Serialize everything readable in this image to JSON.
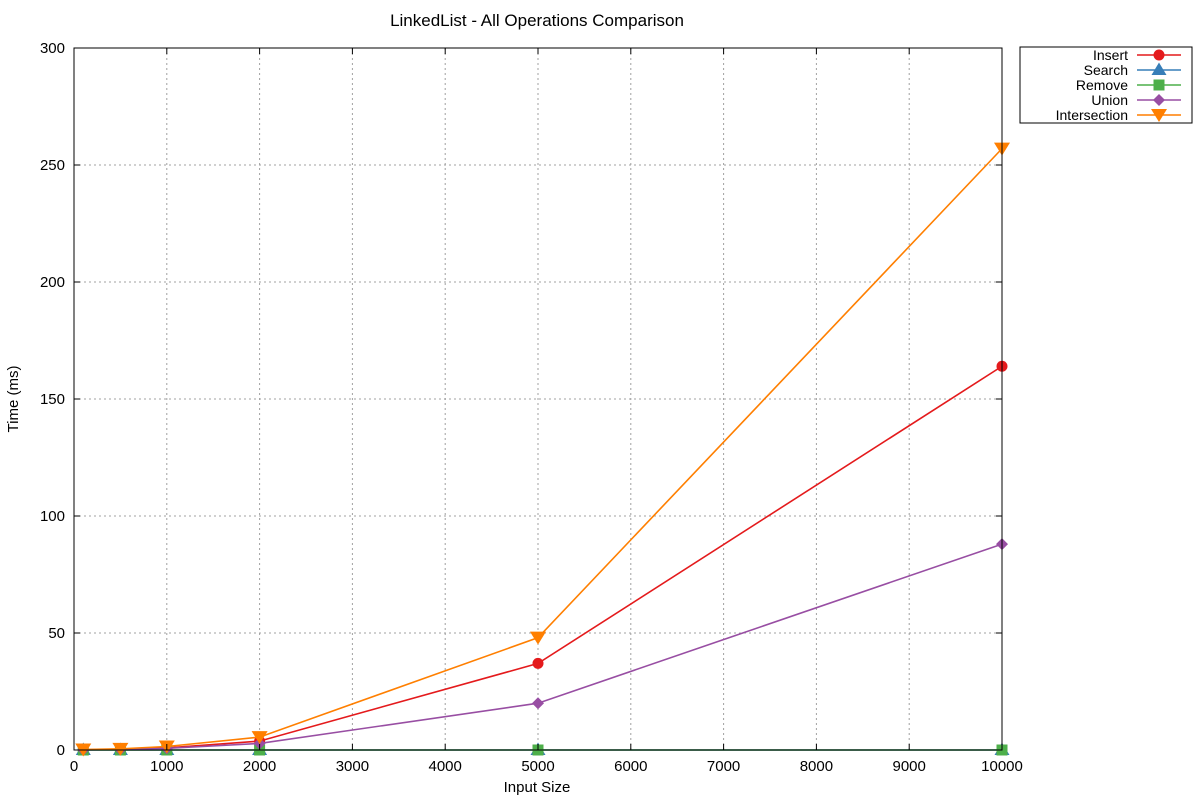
{
  "chart_data": {
    "type": "line",
    "title": "LinkedList - All Operations Comparison",
    "xlabel": "Input Size",
    "ylabel": "Time (ms)",
    "xlim": [
      0,
      10000
    ],
    "ylim": [
      0,
      300
    ],
    "xticks": [
      0,
      1000,
      2000,
      3000,
      4000,
      5000,
      6000,
      7000,
      8000,
      9000,
      10000
    ],
    "yticks": [
      0,
      50,
      100,
      150,
      200,
      250,
      300
    ],
    "grid": true,
    "legend_position": "top-right, outside plot area",
    "series": [
      {
        "name": "Insert",
        "color": "#e41a1c",
        "marker": "circle",
        "x": [
          100,
          500,
          1000,
          2000,
          5000,
          10000
        ],
        "y": [
          0.1,
          0.3,
          0.9,
          3.8,
          37,
          164
        ]
      },
      {
        "name": "Search",
        "color": "#377eb8",
        "marker": "triangle-up",
        "x": [
          100,
          500,
          1000,
          2000,
          5000,
          10000
        ],
        "y": [
          0,
          0,
          0,
          0,
          0,
          0
        ]
      },
      {
        "name": "Remove",
        "color": "#4daf4a",
        "marker": "square",
        "x": [
          100,
          500,
          1000,
          2000,
          5000,
          10000
        ],
        "y": [
          0,
          0,
          0,
          0,
          0,
          0
        ]
      },
      {
        "name": "Union",
        "color": "#984ea3",
        "marker": "diamond",
        "x": [
          100,
          500,
          1000,
          2000,
          5000,
          10000
        ],
        "y": [
          0.05,
          0.2,
          0.7,
          2.8,
          20,
          88
        ]
      },
      {
        "name": "Intersection",
        "color": "#ff7f00",
        "marker": "triangle-down",
        "x": [
          100,
          500,
          1000,
          2000,
          5000,
          10000
        ],
        "y": [
          0.2,
          0.5,
          1.5,
          5.5,
          48,
          257
        ]
      }
    ]
  }
}
